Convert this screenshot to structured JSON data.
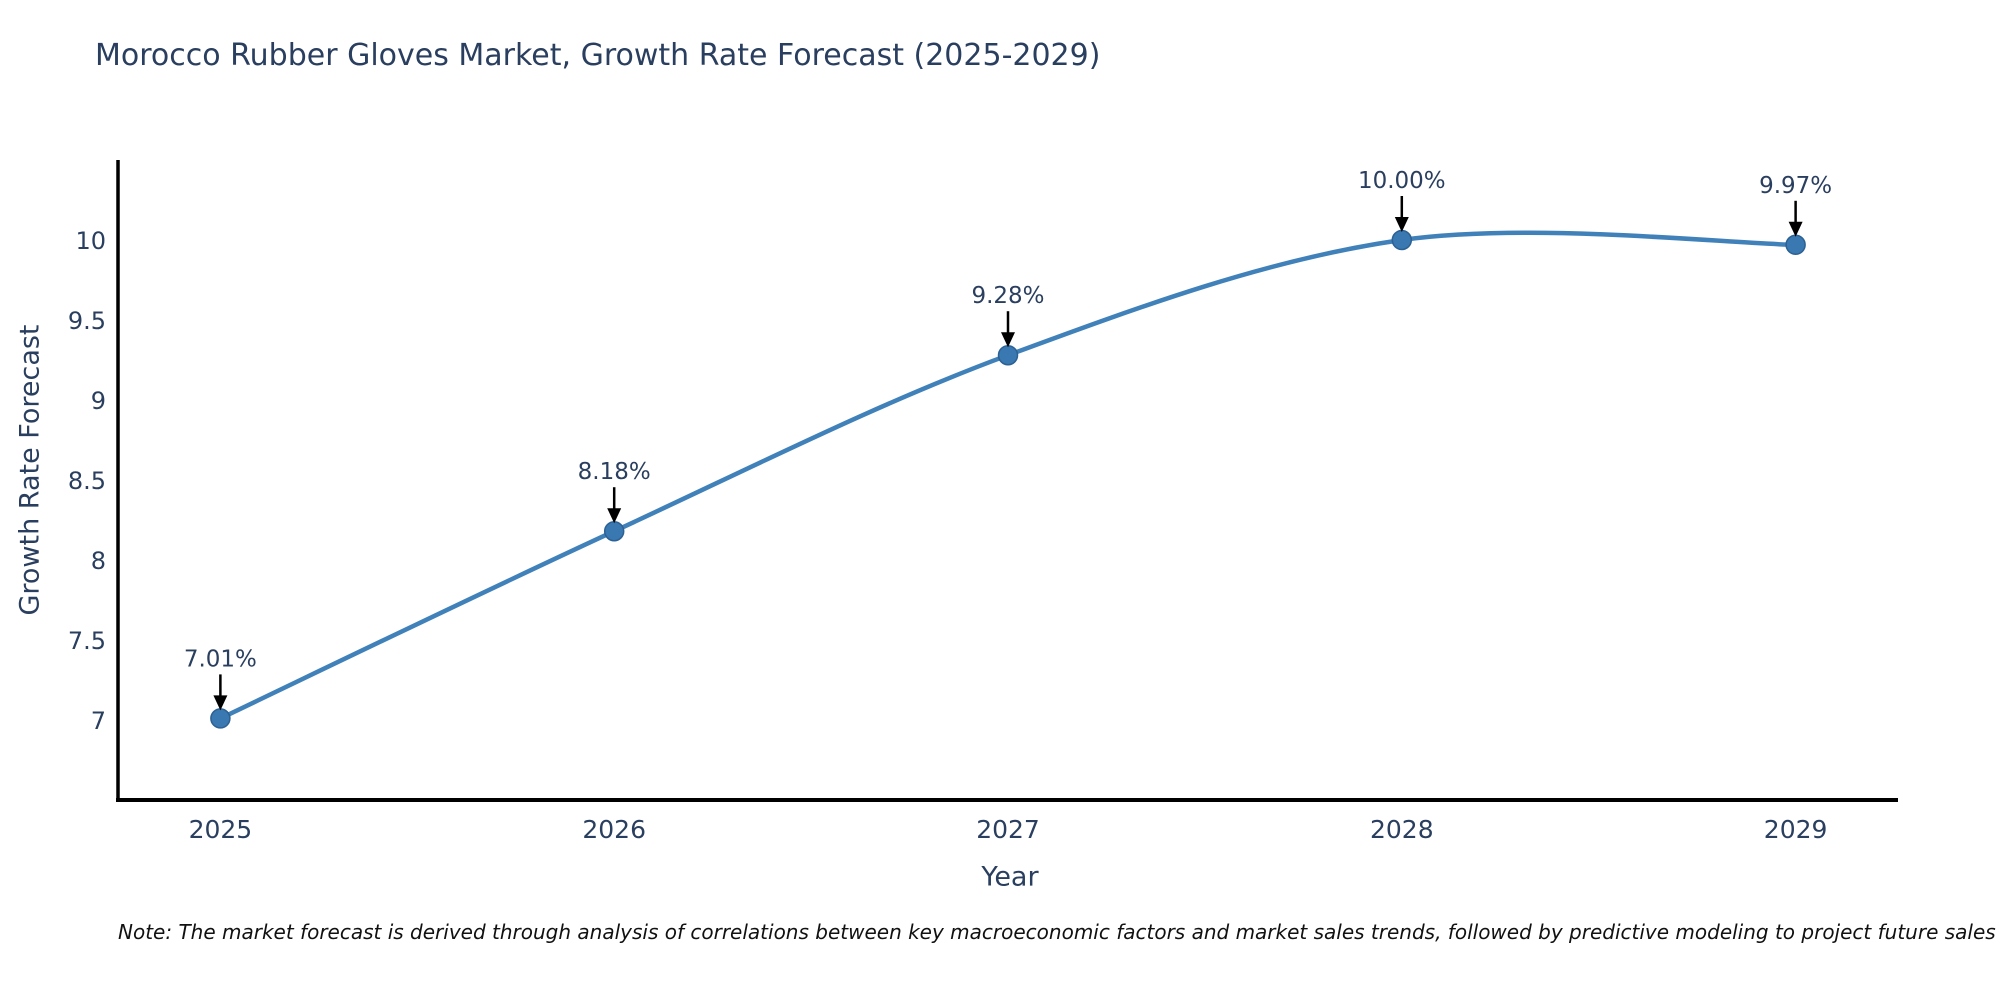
{
  "title": "Morocco Rubber Gloves Market, Growth Rate Forecast (2025-2029)",
  "note": "Note: The market forecast is derived through analysis of correlations between key macroeconomic factors and market sales trends, followed by predictive modeling to project future sales",
  "chart_data": {
    "type": "line",
    "title": "Morocco Rubber Gloves Market, Growth Rate Forecast (2025-2029)",
    "xlabel": "Year",
    "ylabel": "Growth Rate Forecast",
    "x": [
      2025,
      2026,
      2027,
      2028,
      2029
    ],
    "y": [
      7.01,
      8.18,
      9.28,
      10.0,
      9.97
    ],
    "point_labels": [
      "7.01%",
      "8.18%",
      "9.28%",
      "10.00%",
      "9.97%"
    ],
    "xticks": [
      "2025",
      "2026",
      "2027",
      "2028",
      "2029"
    ],
    "yticks": [
      7,
      7.5,
      8,
      8.5,
      9,
      9.5,
      10
    ],
    "xlim": [
      2024.74,
      2029.26
    ],
    "ylim": [
      6.5,
      10.5
    ],
    "line_shape": "spline",
    "grid": false,
    "legend": false,
    "colors": {
      "line": "#4081ba",
      "marker_fill": "#3a78b2",
      "marker_edge": "#2c6193",
      "axis": "#000000",
      "text": "#2a3f5f",
      "annotation_arrow": "#000000"
    }
  }
}
